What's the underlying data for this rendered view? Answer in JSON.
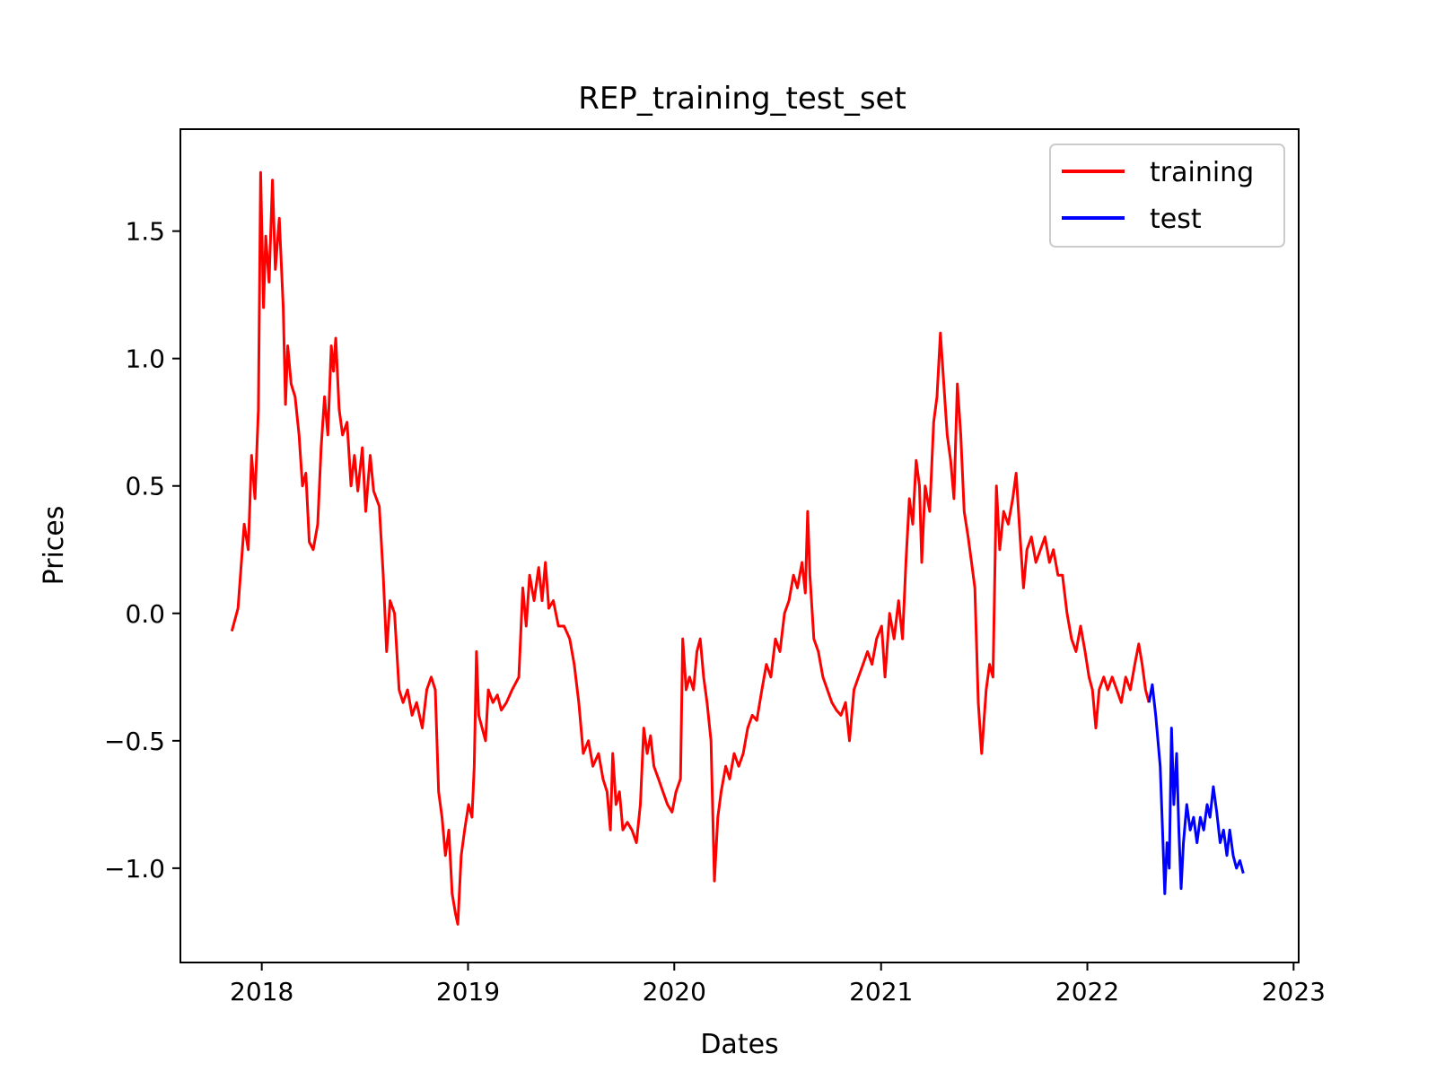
{
  "chart_data": {
    "type": "line",
    "title": "REP_training_test_set",
    "xlabel": "Dates",
    "ylabel": "Prices",
    "xlim": [
      "2017-08-10",
      "2023-01-10"
    ],
    "ylim": [
      -1.37,
      1.9
    ],
    "x_ticks": [
      "2018",
      "2019",
      "2020",
      "2021",
      "2022",
      "2023"
    ],
    "y_ticks": [
      "1.5",
      "1.0",
      "0.5",
      "0.0",
      "−0.5",
      "−1.0"
    ],
    "y_tick_values": [
      1.5,
      1.0,
      0.5,
      0.0,
      -0.5,
      -1.0
    ],
    "legend": {
      "position": "upper-right"
    },
    "grid": false,
    "series": [
      {
        "name": "training",
        "color": "#ff0000",
        "points": [
          [
            "2017-11-09",
            -0.07
          ],
          [
            "2017-11-20",
            0.02
          ],
          [
            "2017-12-01",
            0.35
          ],
          [
            "2017-12-08",
            0.25
          ],
          [
            "2017-12-14",
            0.62
          ],
          [
            "2017-12-20",
            0.45
          ],
          [
            "2017-12-26",
            0.8
          ],
          [
            "2017-12-30",
            1.73
          ],
          [
            "2018-01-04",
            1.2
          ],
          [
            "2018-01-08",
            1.48
          ],
          [
            "2018-01-14",
            1.3
          ],
          [
            "2018-01-20",
            1.7
          ],
          [
            "2018-01-25",
            1.35
          ],
          [
            "2018-02-01",
            1.55
          ],
          [
            "2018-02-08",
            1.2
          ],
          [
            "2018-02-12",
            0.82
          ],
          [
            "2018-02-16",
            1.05
          ],
          [
            "2018-02-22",
            0.9
          ],
          [
            "2018-03-01",
            0.85
          ],
          [
            "2018-03-08",
            0.7
          ],
          [
            "2018-03-14",
            0.5
          ],
          [
            "2018-03-20",
            0.55
          ],
          [
            "2018-03-26",
            0.28
          ],
          [
            "2018-04-02",
            0.25
          ],
          [
            "2018-04-10",
            0.35
          ],
          [
            "2018-04-16",
            0.65
          ],
          [
            "2018-04-22",
            0.85
          ],
          [
            "2018-04-28",
            0.7
          ],
          [
            "2018-05-04",
            1.05
          ],
          [
            "2018-05-08",
            0.95
          ],
          [
            "2018-05-12",
            1.08
          ],
          [
            "2018-05-18",
            0.8
          ],
          [
            "2018-05-24",
            0.7
          ],
          [
            "2018-06-01",
            0.75
          ],
          [
            "2018-06-08",
            0.5
          ],
          [
            "2018-06-14",
            0.62
          ],
          [
            "2018-06-20",
            0.48
          ],
          [
            "2018-06-28",
            0.65
          ],
          [
            "2018-07-04",
            0.4
          ],
          [
            "2018-07-12",
            0.62
          ],
          [
            "2018-07-18",
            0.48
          ],
          [
            "2018-07-28",
            0.42
          ],
          [
            "2018-08-04",
            0.15
          ],
          [
            "2018-08-10",
            -0.15
          ],
          [
            "2018-08-16",
            0.05
          ],
          [
            "2018-08-24",
            0.0
          ],
          [
            "2018-09-01",
            -0.3
          ],
          [
            "2018-09-08",
            -0.35
          ],
          [
            "2018-09-16",
            -0.3
          ],
          [
            "2018-09-24",
            -0.4
          ],
          [
            "2018-10-02",
            -0.35
          ],
          [
            "2018-10-12",
            -0.45
          ],
          [
            "2018-10-20",
            -0.3
          ],
          [
            "2018-10-28",
            -0.25
          ],
          [
            "2018-11-04",
            -0.3
          ],
          [
            "2018-11-10",
            -0.7
          ],
          [
            "2018-11-16",
            -0.8
          ],
          [
            "2018-11-22",
            -0.95
          ],
          [
            "2018-11-28",
            -0.85
          ],
          [
            "2018-12-04",
            -1.1
          ],
          [
            "2018-12-10",
            -1.18
          ],
          [
            "2018-12-14",
            -1.22
          ],
          [
            "2018-12-20",
            -0.95
          ],
          [
            "2018-12-26",
            -0.85
          ],
          [
            "2019-01-02",
            -0.75
          ],
          [
            "2019-01-08",
            -0.8
          ],
          [
            "2019-01-12",
            -0.6
          ],
          [
            "2019-01-16",
            -0.15
          ],
          [
            "2019-01-20",
            -0.4
          ],
          [
            "2019-01-26",
            -0.45
          ],
          [
            "2019-02-01",
            -0.5
          ],
          [
            "2019-02-06",
            -0.3
          ],
          [
            "2019-02-14",
            -0.35
          ],
          [
            "2019-02-22",
            -0.32
          ],
          [
            "2019-03-01",
            -0.38
          ],
          [
            "2019-03-10",
            -0.35
          ],
          [
            "2019-03-20",
            -0.3
          ],
          [
            "2019-04-01",
            -0.25
          ],
          [
            "2019-04-08",
            0.1
          ],
          [
            "2019-04-14",
            -0.05
          ],
          [
            "2019-04-20",
            0.15
          ],
          [
            "2019-04-28",
            0.05
          ],
          [
            "2019-05-06",
            0.18
          ],
          [
            "2019-05-12",
            0.05
          ],
          [
            "2019-05-18",
            0.2
          ],
          [
            "2019-05-24",
            0.02
          ],
          [
            "2019-06-01",
            0.05
          ],
          [
            "2019-06-10",
            -0.05
          ],
          [
            "2019-06-20",
            -0.05
          ],
          [
            "2019-06-30",
            -0.1
          ],
          [
            "2019-07-08",
            -0.2
          ],
          [
            "2019-07-16",
            -0.35
          ],
          [
            "2019-07-24",
            -0.55
          ],
          [
            "2019-08-02",
            -0.5
          ],
          [
            "2019-08-10",
            -0.6
          ],
          [
            "2019-08-20",
            -0.55
          ],
          [
            "2019-08-28",
            -0.65
          ],
          [
            "2019-09-04",
            -0.7
          ],
          [
            "2019-09-10",
            -0.85
          ],
          [
            "2019-09-14",
            -0.55
          ],
          [
            "2019-09-20",
            -0.75
          ],
          [
            "2019-09-26",
            -0.7
          ],
          [
            "2019-10-02",
            -0.85
          ],
          [
            "2019-10-10",
            -0.82
          ],
          [
            "2019-10-18",
            -0.85
          ],
          [
            "2019-10-26",
            -0.9
          ],
          [
            "2019-11-02",
            -0.75
          ],
          [
            "2019-11-08",
            -0.45
          ],
          [
            "2019-11-14",
            -0.55
          ],
          [
            "2019-11-20",
            -0.48
          ],
          [
            "2019-11-26",
            -0.6
          ],
          [
            "2019-12-04",
            -0.65
          ],
          [
            "2019-12-12",
            -0.7
          ],
          [
            "2019-12-20",
            -0.75
          ],
          [
            "2019-12-28",
            -0.78
          ],
          [
            "2020-01-04",
            -0.7
          ],
          [
            "2020-01-12",
            -0.65
          ],
          [
            "2020-01-16",
            -0.1
          ],
          [
            "2020-01-22",
            -0.3
          ],
          [
            "2020-01-28",
            -0.25
          ],
          [
            "2020-02-04",
            -0.3
          ],
          [
            "2020-02-10",
            -0.15
          ],
          [
            "2020-02-16",
            -0.1
          ],
          [
            "2020-02-22",
            -0.25
          ],
          [
            "2020-02-28",
            -0.35
          ],
          [
            "2020-03-06",
            -0.5
          ],
          [
            "2020-03-12",
            -1.05
          ],
          [
            "2020-03-18",
            -0.8
          ],
          [
            "2020-03-24",
            -0.7
          ],
          [
            "2020-04-01",
            -0.6
          ],
          [
            "2020-04-08",
            -0.65
          ],
          [
            "2020-04-16",
            -0.55
          ],
          [
            "2020-04-24",
            -0.6
          ],
          [
            "2020-05-02",
            -0.55
          ],
          [
            "2020-05-10",
            -0.45
          ],
          [
            "2020-05-18",
            -0.4
          ],
          [
            "2020-05-26",
            -0.42
          ],
          [
            "2020-06-04",
            -0.3
          ],
          [
            "2020-06-12",
            -0.2
          ],
          [
            "2020-06-20",
            -0.25
          ],
          [
            "2020-06-28",
            -0.1
          ],
          [
            "2020-07-06",
            -0.15
          ],
          [
            "2020-07-14",
            0.0
          ],
          [
            "2020-07-22",
            0.05
          ],
          [
            "2020-07-30",
            0.15
          ],
          [
            "2020-08-06",
            0.1
          ],
          [
            "2020-08-14",
            0.2
          ],
          [
            "2020-08-20",
            0.08
          ],
          [
            "2020-08-24",
            0.4
          ],
          [
            "2020-08-28",
            0.15
          ],
          [
            "2020-09-04",
            -0.1
          ],
          [
            "2020-09-12",
            -0.15
          ],
          [
            "2020-09-20",
            -0.25
          ],
          [
            "2020-09-28",
            -0.3
          ],
          [
            "2020-10-06",
            -0.35
          ],
          [
            "2020-10-14",
            -0.38
          ],
          [
            "2020-10-22",
            -0.4
          ],
          [
            "2020-10-30",
            -0.35
          ],
          [
            "2020-11-06",
            -0.5
          ],
          [
            "2020-11-14",
            -0.3
          ],
          [
            "2020-11-22",
            -0.25
          ],
          [
            "2020-11-30",
            -0.2
          ],
          [
            "2020-12-08",
            -0.15
          ],
          [
            "2020-12-16",
            -0.2
          ],
          [
            "2020-12-24",
            -0.1
          ],
          [
            "2021-01-02",
            -0.05
          ],
          [
            "2021-01-08",
            -0.25
          ],
          [
            "2021-01-16",
            0.0
          ],
          [
            "2021-01-24",
            -0.1
          ],
          [
            "2021-02-01",
            0.05
          ],
          [
            "2021-02-08",
            -0.1
          ],
          [
            "2021-02-14",
            0.2
          ],
          [
            "2021-02-20",
            0.45
          ],
          [
            "2021-02-26",
            0.35
          ],
          [
            "2021-03-04",
            0.6
          ],
          [
            "2021-03-10",
            0.5
          ],
          [
            "2021-03-14",
            0.2
          ],
          [
            "2021-03-20",
            0.5
          ],
          [
            "2021-03-28",
            0.4
          ],
          [
            "2021-04-04",
            0.75
          ],
          [
            "2021-04-10",
            0.85
          ],
          [
            "2021-04-16",
            1.1
          ],
          [
            "2021-04-22",
            0.9
          ],
          [
            "2021-04-28",
            0.7
          ],
          [
            "2021-05-04",
            0.6
          ],
          [
            "2021-05-10",
            0.45
          ],
          [
            "2021-05-16",
            0.9
          ],
          [
            "2021-05-22",
            0.7
          ],
          [
            "2021-05-28",
            0.4
          ],
          [
            "2021-06-04",
            0.3
          ],
          [
            "2021-06-10",
            0.2
          ],
          [
            "2021-06-16",
            0.1
          ],
          [
            "2021-06-22",
            -0.35
          ],
          [
            "2021-06-28",
            -0.55
          ],
          [
            "2021-07-06",
            -0.3
          ],
          [
            "2021-07-12",
            -0.2
          ],
          [
            "2021-07-18",
            -0.25
          ],
          [
            "2021-07-24",
            0.5
          ],
          [
            "2021-07-30",
            0.25
          ],
          [
            "2021-08-06",
            0.4
          ],
          [
            "2021-08-14",
            0.35
          ],
          [
            "2021-08-22",
            0.45
          ],
          [
            "2021-08-28",
            0.55
          ],
          [
            "2021-09-04",
            0.3
          ],
          [
            "2021-09-10",
            0.1
          ],
          [
            "2021-09-16",
            0.25
          ],
          [
            "2021-09-24",
            0.3
          ],
          [
            "2021-10-02",
            0.2
          ],
          [
            "2021-10-10",
            0.25
          ],
          [
            "2021-10-18",
            0.3
          ],
          [
            "2021-10-26",
            0.2
          ],
          [
            "2021-11-02",
            0.25
          ],
          [
            "2021-11-10",
            0.15
          ],
          [
            "2021-11-18",
            0.15
          ],
          [
            "2021-11-26",
            0.0
          ],
          [
            "2021-12-04",
            -0.1
          ],
          [
            "2021-12-12",
            -0.15
          ],
          [
            "2021-12-20",
            -0.05
          ],
          [
            "2021-12-28",
            -0.15
          ],
          [
            "2022-01-04",
            -0.25
          ],
          [
            "2022-01-10",
            -0.3
          ],
          [
            "2022-01-16",
            -0.45
          ],
          [
            "2022-01-22",
            -0.3
          ],
          [
            "2022-01-30",
            -0.25
          ],
          [
            "2022-02-06",
            -0.3
          ],
          [
            "2022-02-14",
            -0.25
          ],
          [
            "2022-02-22",
            -0.3
          ],
          [
            "2022-03-02",
            -0.35
          ],
          [
            "2022-03-10",
            -0.25
          ],
          [
            "2022-03-18",
            -0.3
          ],
          [
            "2022-03-26",
            -0.2
          ],
          [
            "2022-04-02",
            -0.12
          ],
          [
            "2022-04-08",
            -0.2
          ],
          [
            "2022-04-14",
            -0.3
          ],
          [
            "2022-04-20",
            -0.35
          ]
        ]
      },
      {
        "name": "test",
        "color": "#0000ff",
        "points": [
          [
            "2022-04-20",
            -0.35
          ],
          [
            "2022-04-26",
            -0.28
          ],
          [
            "2022-05-02",
            -0.4
          ],
          [
            "2022-05-06",
            -0.5
          ],
          [
            "2022-05-10",
            -0.6
          ],
          [
            "2022-05-14",
            -0.85
          ],
          [
            "2022-05-18",
            -1.1
          ],
          [
            "2022-05-22",
            -0.9
          ],
          [
            "2022-05-26",
            -1.0
          ],
          [
            "2022-05-30",
            -0.45
          ],
          [
            "2022-06-03",
            -0.75
          ],
          [
            "2022-06-08",
            -0.55
          ],
          [
            "2022-06-12",
            -0.85
          ],
          [
            "2022-06-16",
            -1.08
          ],
          [
            "2022-06-20",
            -0.9
          ],
          [
            "2022-06-26",
            -0.75
          ],
          [
            "2022-07-02",
            -0.85
          ],
          [
            "2022-07-08",
            -0.8
          ],
          [
            "2022-07-14",
            -0.9
          ],
          [
            "2022-07-20",
            -0.8
          ],
          [
            "2022-07-26",
            -0.85
          ],
          [
            "2022-08-01",
            -0.75
          ],
          [
            "2022-08-06",
            -0.8
          ],
          [
            "2022-08-12",
            -0.68
          ],
          [
            "2022-08-18",
            -0.78
          ],
          [
            "2022-08-24",
            -0.9
          ],
          [
            "2022-08-30",
            -0.85
          ],
          [
            "2022-09-05",
            -0.95
          ],
          [
            "2022-09-10",
            -0.85
          ],
          [
            "2022-09-16",
            -0.95
          ],
          [
            "2022-09-22",
            -1.0
          ],
          [
            "2022-09-28",
            -0.97
          ],
          [
            "2022-10-04",
            -1.02
          ]
        ]
      }
    ]
  }
}
